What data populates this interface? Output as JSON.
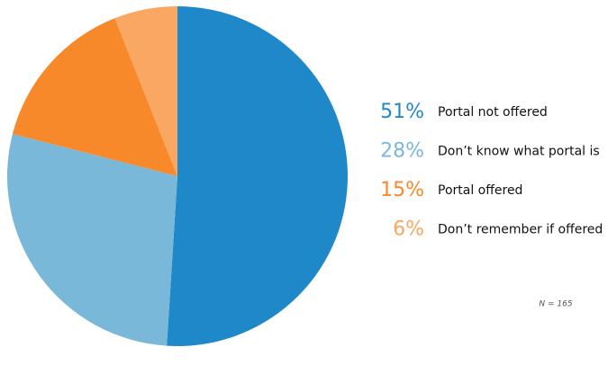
{
  "chart_data": {
    "type": "pie",
    "categories": [
      "Portal not offered",
      "Don’t know what portal is",
      "Portal offered",
      "Don’t remember if offered"
    ],
    "values": [
      51,
      28,
      15,
      6
    ],
    "value_labels": [
      "51%",
      "28%",
      "15%",
      "6%"
    ],
    "colors": [
      "#1f88c9",
      "#7ab8da",
      "#f8892a",
      "#f9a762"
    ],
    "annotation": "N = 165"
  }
}
